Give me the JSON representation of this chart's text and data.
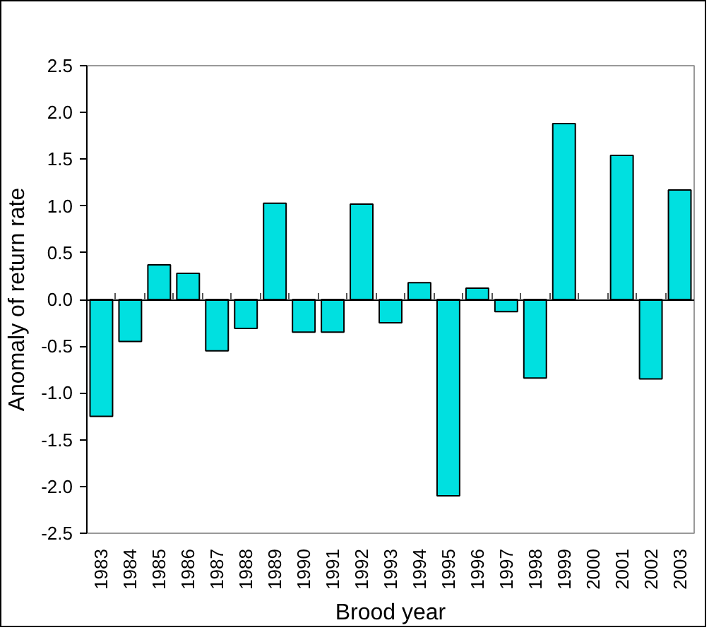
{
  "chart_data": {
    "type": "bar",
    "xlabel": "Brood year",
    "ylabel": "Anomaly of return rate",
    "categories": [
      "1983",
      "1984",
      "1985",
      "1986",
      "1987",
      "1988",
      "1989",
      "1990",
      "1991",
      "1992",
      "1993",
      "1994",
      "1995",
      "1996",
      "1997",
      "1998",
      "1999",
      "2000",
      "2001",
      "2002",
      "2003"
    ],
    "values": [
      -1.25,
      -0.45,
      0.37,
      0.28,
      -0.55,
      -0.31,
      1.03,
      -0.35,
      -0.35,
      1.02,
      -0.25,
      0.18,
      -2.1,
      0.12,
      -0.13,
      -0.84,
      1.88,
      null,
      1.54,
      -0.85,
      1.17
    ],
    "color": "#00e0e0",
    "ylim": [
      -2.5,
      2.5
    ],
    "yticks": [
      -2.5,
      {
        "value": -2,
        "label": "-2.0"
      },
      -1.5,
      {
        "value": -1,
        "label": "-1.0"
      },
      -0.5,
      {
        "value": 0,
        "label": "0.0"
      },
      0.5,
      {
        "value": 1,
        "label": "1.0"
      },
      1.5,
      {
        "value": 2,
        "label": "2.0"
      },
      2.5
    ]
  }
}
